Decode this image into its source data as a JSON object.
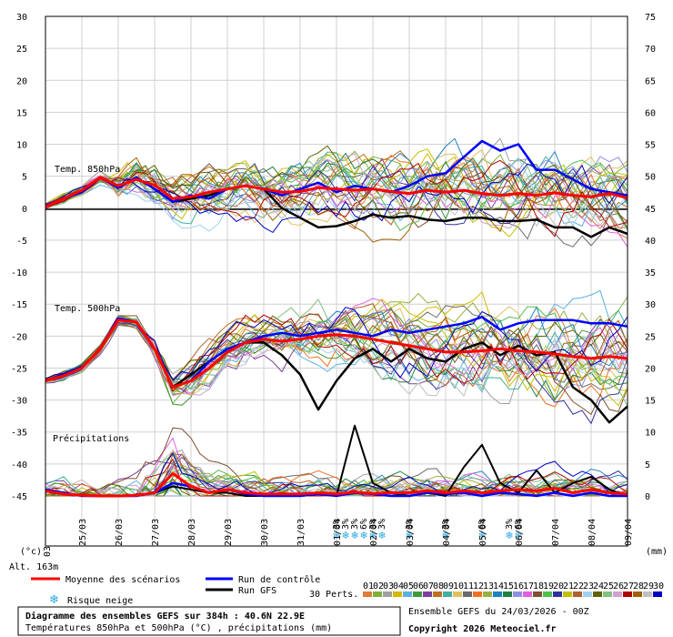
{
  "chart_data": {
    "type": "line",
    "title": "Diagramme des ensembles GEFS sur 384h : 40.6N 22.9E",
    "subtitle": "Températures 850hPa et 500hPa (°C) , précipitations (mm)",
    "run_info": "Ensemble GEFS du 24/03/2026 - 00Z",
    "copyright": "Copyright 2026 Meteociel.fr",
    "altitude": "Alt. 163m",
    "left_unit": "(°c)",
    "right_unit": "(mm)",
    "left_ticks": [
      30,
      25,
      20,
      15,
      10,
      5,
      0,
      -5,
      -10,
      -15,
      -20,
      -25,
      -30,
      -35,
      -40,
      -45
    ],
    "right_ticks": [
      75,
      70,
      65,
      60,
      55,
      50,
      45,
      40,
      35,
      30,
      25,
      20,
      15,
      10,
      5,
      0
    ],
    "left_ylim": [
      -45,
      30
    ],
    "right_ylim": [
      0,
      75
    ],
    "x_labels": [
      "25/03",
      "26/03",
      "27/03",
      "28/03",
      "29/03",
      "30/03",
      "31/03",
      "01/04",
      "02/04",
      "03/04",
      "04/04",
      "05/04",
      "06/04",
      "07/04",
      "08/04",
      "09/04"
    ],
    "x_first_partial": "03",
    "section_labels": {
      "t850": "Temp. 850hPa",
      "t500": "Temp. 500hPa",
      "precip": "Précipitations"
    },
    "legend": {
      "mean": "Moyenne des scénarios",
      "control": "Run de contrôle",
      "gfs": "Run GFS",
      "snow": "Risque neige",
      "perts": "30 Perts."
    },
    "pert_numbers": [
      "01",
      "02",
      "03",
      "04",
      "05",
      "06",
      "07",
      "08",
      "09",
      "10",
      "11",
      "12",
      "13",
      "14",
      "15",
      "16",
      "17",
      "18",
      "19",
      "20",
      "21",
      "22",
      "23",
      "24",
      "25",
      "26",
      "27",
      "28",
      "29",
      "30"
    ],
    "pert_colors": [
      "#e07b39",
      "#7fb03a",
      "#a0a0a0",
      "#d4b800",
      "#5ab0e0",
      "#3c9a3c",
      "#7b3fa0",
      "#c07020",
      "#40b0a0",
      "#e0c060",
      "#6a6a6a",
      "#f07020",
      "#9ab040",
      "#2080c0",
      "#208040",
      "#9090e0",
      "#e060e0",
      "#805030",
      "#50c050",
      "#3030a0",
      "#c0c000",
      "#b06030",
      "#a0d0f0",
      "#606000",
      "#80c080",
      "#d0a0d0",
      "#b00000",
      "#a06000",
      "#c0c0c0",
      "#0000c0"
    ],
    "colors": {
      "mean": "#ff0000",
      "control": "#0000ff",
      "gfs": "#000000",
      "snow": "#2aa8e0"
    },
    "snow_risk": [
      {
        "x": 8.0,
        "label": "3%"
      },
      {
        "x": 8.25,
        "label": "3%"
      },
      {
        "x": 8.5,
        "label": "3%"
      },
      {
        "x": 8.75,
        "label": "6%"
      },
      {
        "x": 9.0,
        "label": "3%"
      },
      {
        "x": 9.25,
        "label": "3%"
      },
      {
        "x": 10.0,
        "label": "3%"
      },
      {
        "x": 11.0,
        "label": "3%"
      },
      {
        "x": 12.0,
        "label": "6%"
      },
      {
        "x": 12.75,
        "label": "3%"
      },
      {
        "x": 13.0,
        "label": "6%"
      }
    ],
    "mean_t850": [
      [
        0,
        0.3
      ],
      [
        0.5,
        1.5
      ],
      [
        1,
        2.8
      ],
      [
        1.5,
        4.8
      ],
      [
        2,
        3.5
      ],
      [
        2.5,
        4.5
      ],
      [
        3,
        3.6
      ],
      [
        3.5,
        1.5
      ],
      [
        4,
        1.8
      ],
      [
        4.5,
        2.5
      ],
      [
        5,
        3.0
      ],
      [
        5.5,
        3.5
      ],
      [
        6,
        3.0
      ],
      [
        6.5,
        2.5
      ],
      [
        7,
        2.6
      ],
      [
        7.5,
        3.2
      ],
      [
        8,
        3.0
      ],
      [
        8.5,
        2.8
      ],
      [
        9,
        3.0
      ],
      [
        9.5,
        2.6
      ],
      [
        10,
        2.3
      ],
      [
        10.5,
        2.8
      ],
      [
        11,
        2.5
      ],
      [
        11.5,
        2.8
      ],
      [
        12,
        2.3
      ],
      [
        12.5,
        2.0
      ],
      [
        13,
        2.3
      ],
      [
        13.5,
        2.0
      ],
      [
        14,
        2.4
      ],
      [
        14.5,
        2.0
      ],
      [
        15,
        1.8
      ],
      [
        15.5,
        2.3
      ],
      [
        16,
        1.6
      ]
    ],
    "control_t850": [
      [
        0,
        0.5
      ],
      [
        0.5,
        1.5
      ],
      [
        1,
        2.5
      ],
      [
        1.5,
        4.8
      ],
      [
        2,
        3.2
      ],
      [
        2.5,
        4.8
      ],
      [
        3,
        3.0
      ],
      [
        3.5,
        1.0
      ],
      [
        4,
        2.0
      ],
      [
        4.5,
        1.5
      ],
      [
        5,
        3.0
      ],
      [
        5.5,
        3.5
      ],
      [
        6,
        3.0
      ],
      [
        6.5,
        2.0
      ],
      [
        7,
        3.0
      ],
      [
        7.5,
        4.0
      ],
      [
        8,
        2.5
      ],
      [
        8.5,
        3.5
      ],
      [
        9,
        3.0
      ],
      [
        9.5,
        2.5
      ],
      [
        10,
        3.5
      ],
      [
        10.5,
        5.0
      ],
      [
        11,
        5.5
      ],
      [
        11.5,
        8.0
      ],
      [
        12,
        10.5
      ],
      [
        12.5,
        9.0
      ],
      [
        13,
        10.0
      ],
      [
        13.5,
        6.0
      ],
      [
        14,
        6.0
      ],
      [
        14.5,
        4.5
      ],
      [
        15,
        3.0
      ],
      [
        15.5,
        2.5
      ],
      [
        16,
        2.0
      ]
    ],
    "gfs_t850": [
      [
        0,
        0.5
      ],
      [
        0.5,
        1.5
      ],
      [
        1,
        2.5
      ],
      [
        1.5,
        4.8
      ],
      [
        2,
        3.2
      ],
      [
        2.5,
        4.8
      ],
      [
        3,
        3.0
      ],
      [
        3.5,
        1.0
      ],
      [
        4,
        1.5
      ],
      [
        4.5,
        2.0
      ],
      [
        5,
        3.0
      ],
      [
        5.5,
        3.5
      ],
      [
        6,
        3.0
      ],
      [
        6.5,
        0.0
      ],
      [
        7,
        -1.5
      ],
      [
        7.5,
        -3.0
      ],
      [
        8,
        -2.8
      ],
      [
        8.5,
        -2.0
      ],
      [
        9,
        -1.0
      ],
      [
        9.5,
        -1.5
      ],
      [
        10,
        -1.2
      ],
      [
        10.5,
        -1.8
      ],
      [
        11,
        -2.0
      ],
      [
        11.5,
        -1.5
      ],
      [
        12,
        -1.5
      ],
      [
        12.5,
        -2.0
      ],
      [
        13,
        -2.0
      ],
      [
        13.5,
        -1.8
      ],
      [
        14,
        -3.0
      ],
      [
        14.5,
        -3.0
      ],
      [
        15,
        -4.5
      ],
      [
        15.5,
        -3.0
      ],
      [
        16,
        -4.0
      ]
    ],
    "mean_t500": [
      [
        0,
        -27
      ],
      [
        0.5,
        -26.2
      ],
      [
        1,
        -25
      ],
      [
        1.5,
        -22
      ],
      [
        2,
        -17.5
      ],
      [
        2.5,
        -17.8
      ],
      [
        3,
        -22
      ],
      [
        3.5,
        -28
      ],
      [
        4,
        -27
      ],
      [
        4.5,
        -25
      ],
      [
        5,
        -22.5
      ],
      [
        5.5,
        -21
      ],
      [
        6,
        -20.5
      ],
      [
        6.5,
        -20.8
      ],
      [
        7,
        -20.5
      ],
      [
        7.5,
        -20
      ],
      [
        8,
        -19.8
      ],
      [
        8.5,
        -20
      ],
      [
        9,
        -20.5
      ],
      [
        9.5,
        -21
      ],
      [
        10,
        -21.5
      ],
      [
        10.5,
        -22
      ],
      [
        11,
        -22.5
      ],
      [
        11.5,
        -22.5
      ],
      [
        12,
        -22.3
      ],
      [
        12.5,
        -22
      ],
      [
        13,
        -22.3
      ],
      [
        13.5,
        -22.5
      ],
      [
        14,
        -22.8
      ],
      [
        14.5,
        -23.2
      ],
      [
        15,
        -23.5
      ],
      [
        15.5,
        -23.2
      ],
      [
        16,
        -23.5
      ]
    ],
    "control_t500": [
      [
        0,
        -27
      ],
      [
        0.5,
        -26
      ],
      [
        1,
        -25
      ],
      [
        1.5,
        -22
      ],
      [
        2,
        -17.2
      ],
      [
        2.5,
        -17.8
      ],
      [
        3,
        -22
      ],
      [
        3.5,
        -28
      ],
      [
        4,
        -27
      ],
      [
        4.5,
        -24
      ],
      [
        5,
        -22
      ],
      [
        5.5,
        -21
      ],
      [
        6,
        -20
      ],
      [
        6.5,
        -19.5
      ],
      [
        7,
        -20
      ],
      [
        7.5,
        -19.5
      ],
      [
        8,
        -19
      ],
      [
        8.5,
        -19.5
      ],
      [
        9,
        -20
      ],
      [
        9.5,
        -19
      ],
      [
        10,
        -19.5
      ],
      [
        10.5,
        -19
      ],
      [
        11,
        -18.5
      ],
      [
        11.5,
        -18
      ],
      [
        12,
        -17
      ],
      [
        12.5,
        -19
      ],
      [
        13,
        -18
      ],
      [
        13.5,
        -17.5
      ],
      [
        14,
        -17.5
      ],
      [
        14.5,
        -17.5
      ],
      [
        15,
        -18
      ],
      [
        15.5,
        -18
      ],
      [
        16,
        -18.5
      ]
    ],
    "gfs_t500": [
      [
        0,
        -27
      ],
      [
        0.5,
        -26
      ],
      [
        1,
        -25
      ],
      [
        1.5,
        -22
      ],
      [
        2,
        -17.2
      ],
      [
        2.5,
        -17.8
      ],
      [
        3,
        -22
      ],
      [
        3.5,
        -28
      ],
      [
        4,
        -26
      ],
      [
        4.5,
        -24
      ],
      [
        5,
        -22
      ],
      [
        5.5,
        -21
      ],
      [
        6,
        -21
      ],
      [
        6.5,
        -23
      ],
      [
        7,
        -26
      ],
      [
        7.5,
        -31.5
      ],
      [
        8,
        -27
      ],
      [
        8.5,
        -23.5
      ],
      [
        9,
        -22
      ],
      [
        9.5,
        -24
      ],
      [
        10,
        -22
      ],
      [
        10.5,
        -23.5
      ],
      [
        11,
        -24
      ],
      [
        11.5,
        -22
      ],
      [
        12,
        -21
      ],
      [
        12.5,
        -23
      ],
      [
        13,
        -21.5
      ],
      [
        13.5,
        -23
      ],
      [
        14,
        -22.5
      ],
      [
        14.5,
        -28
      ],
      [
        15,
        -30
      ],
      [
        15.5,
        -33.5
      ],
      [
        16,
        -31
      ]
    ],
    "mean_precip": [
      [
        0,
        0.8
      ],
      [
        0.5,
        0.3
      ],
      [
        1,
        0.1
      ],
      [
        1.5,
        0.0
      ],
      [
        2,
        0.0
      ],
      [
        2.5,
        0.1
      ],
      [
        3,
        0.5
      ],
      [
        3.5,
        3.5
      ],
      [
        4,
        1.5
      ],
      [
        4.5,
        0.5
      ],
      [
        5,
        1.0
      ],
      [
        5.5,
        0.5
      ],
      [
        6,
        0.3
      ],
      [
        6.5,
        0.3
      ],
      [
        7,
        0.3
      ],
      [
        7.5,
        0.5
      ],
      [
        8,
        0.3
      ],
      [
        8.5,
        0.6
      ],
      [
        9,
        0.4
      ],
      [
        9.5,
        0.5
      ],
      [
        10,
        0.5
      ],
      [
        10.5,
        0.8
      ],
      [
        11,
        0.5
      ],
      [
        11.5,
        0.8
      ],
      [
        12,
        0.5
      ],
      [
        12.5,
        0.8
      ],
      [
        13,
        1.0
      ],
      [
        13.5,
        0.8
      ],
      [
        14,
        1.2
      ],
      [
        14.5,
        0.5
      ],
      [
        15,
        1.0
      ],
      [
        15.5,
        0.5
      ],
      [
        16,
        0.3
      ]
    ],
    "control_precip": [
      [
        0,
        1.0
      ],
      [
        0.5,
        0.5
      ],
      [
        1,
        0.0
      ],
      [
        1.5,
        0.0
      ],
      [
        2,
        0.0
      ],
      [
        2.5,
        0.0
      ],
      [
        3,
        0.5
      ],
      [
        3.5,
        2.0
      ],
      [
        4,
        1.5
      ],
      [
        4.5,
        0.5
      ],
      [
        5,
        1.0
      ],
      [
        5.5,
        0.3
      ],
      [
        6,
        0.0
      ],
      [
        6.5,
        0.0
      ],
      [
        7,
        0.0
      ],
      [
        7.5,
        0.3
      ],
      [
        8,
        0.0
      ],
      [
        8.5,
        0.5
      ],
      [
        9,
        0.3
      ],
      [
        9.5,
        0.0
      ],
      [
        10,
        0.0
      ],
      [
        10.5,
        0.5
      ],
      [
        11,
        0.3
      ],
      [
        11.5,
        0.5
      ],
      [
        12,
        0.0
      ],
      [
        12.5,
        0.5
      ],
      [
        13,
        0.3
      ],
      [
        13.5,
        0.0
      ],
      [
        14,
        0.5
      ],
      [
        14.5,
        0.0
      ],
      [
        15,
        0.5
      ],
      [
        15.5,
        0.0
      ],
      [
        16,
        0.0
      ]
    ],
    "gfs_precip": [
      [
        0,
        1.0
      ],
      [
        0.5,
        0.5
      ],
      [
        1,
        0.0
      ],
      [
        1.5,
        0.0
      ],
      [
        2,
        0.0
      ],
      [
        2.5,
        0.0
      ],
      [
        3,
        0.5
      ],
      [
        3.5,
        1.5
      ],
      [
        4,
        1.0
      ],
      [
        4.5,
        0.5
      ],
      [
        5,
        0.5
      ],
      [
        5.5,
        0.0
      ],
      [
        6,
        0.0
      ],
      [
        6.5,
        0.0
      ],
      [
        7,
        0.0
      ],
      [
        7.5,
        0.5
      ],
      [
        8,
        0.0
      ],
      [
        8.5,
        11.0
      ],
      [
        9,
        2.0
      ],
      [
        9.5,
        0.5
      ],
      [
        10,
        0.0
      ],
      [
        10.5,
        0.5
      ],
      [
        11,
        0.0
      ],
      [
        11.5,
        4.5
      ],
      [
        12,
        8.0
      ],
      [
        12.5,
        2.0
      ],
      [
        13,
        0.5
      ],
      [
        13.5,
        4.0
      ],
      [
        14,
        0.5
      ],
      [
        14.5,
        2.0
      ],
      [
        15,
        3.0
      ],
      [
        15.5,
        1.0
      ],
      [
        16,
        0.0
      ]
    ]
  }
}
